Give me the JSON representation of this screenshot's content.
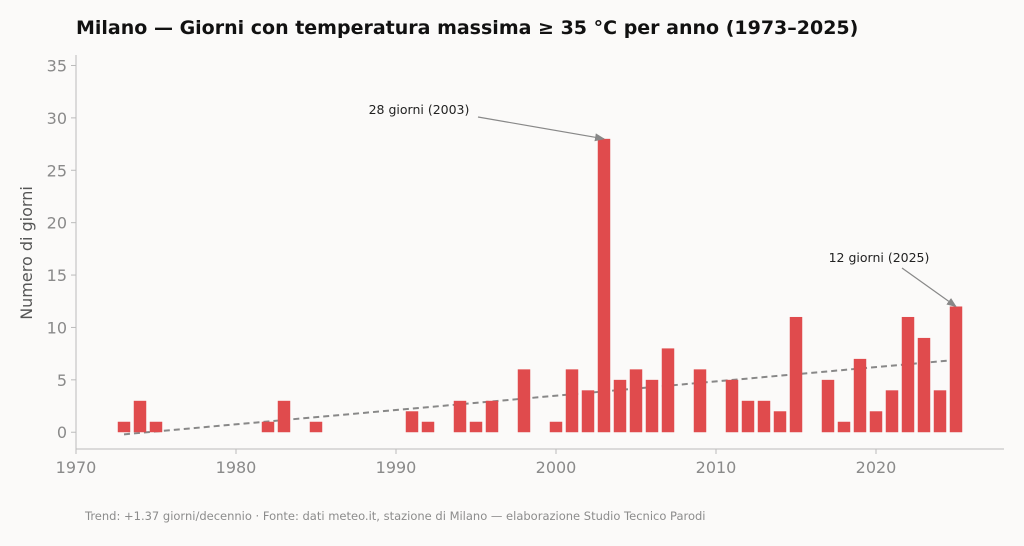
{
  "chart_data": {
    "type": "bar",
    "title": "Milano — Giorni con temperatura massima ≥ 35 °C per anno (1973–2025)",
    "xlabel": "",
    "ylabel": "Numero di giorni",
    "xlim": [
      1970,
      2028
    ],
    "ylim": [
      -1.6,
      36
    ],
    "xticks": [
      "1970",
      "1980",
      "1990",
      "2000",
      "2010",
      "2020"
    ],
    "yticks": [
      "0",
      "5",
      "10",
      "15",
      "20",
      "25",
      "30",
      "35"
    ],
    "grid": false,
    "bar_color": "#e04b4d",
    "trend_color": "#888888",
    "x": [
      1973,
      1974,
      1975,
      1976,
      1977,
      1978,
      1979,
      1980,
      1981,
      1982,
      1983,
      1984,
      1985,
      1986,
      1987,
      1988,
      1989,
      1990,
      1991,
      1992,
      1993,
      1994,
      1995,
      1996,
      1997,
      1998,
      1999,
      2000,
      2001,
      2002,
      2003,
      2004,
      2005,
      2006,
      2007,
      2008,
      2009,
      2010,
      2011,
      2012,
      2013,
      2014,
      2015,
      2016,
      2017,
      2018,
      2019,
      2020,
      2021,
      2022,
      2023,
      2024,
      2025
    ],
    "values": [
      1,
      3,
      1,
      0,
      0,
      0,
      0,
      0,
      0,
      1,
      3,
      0,
      1,
      0,
      0,
      0,
      0,
      0,
      2,
      1,
      0,
      3,
      1,
      3,
      0,
      6,
      0,
      1,
      6,
      4,
      28,
      5,
      6,
      5,
      8,
      0,
      6,
      0,
      5,
      3,
      3,
      2,
      11,
      0,
      5,
      1,
      7,
      2,
      4,
      11,
      9,
      4,
      12
    ],
    "trend": {
      "x": [
        1973,
        2025
      ],
      "y": [
        -0.2,
        6.9
      ]
    },
    "annotations": [
      {
        "text": "28 giorni (2003)",
        "x": 2003,
        "y": 28
      },
      {
        "text": "12 giorni (2025)",
        "x": 2025,
        "y": 12
      }
    ],
    "footer": "Trend: +1.37 giorni/decennio · Fonte: dati meteo.it, stazione di Milano — elaborazione Studio Tecnico Parodi"
  }
}
